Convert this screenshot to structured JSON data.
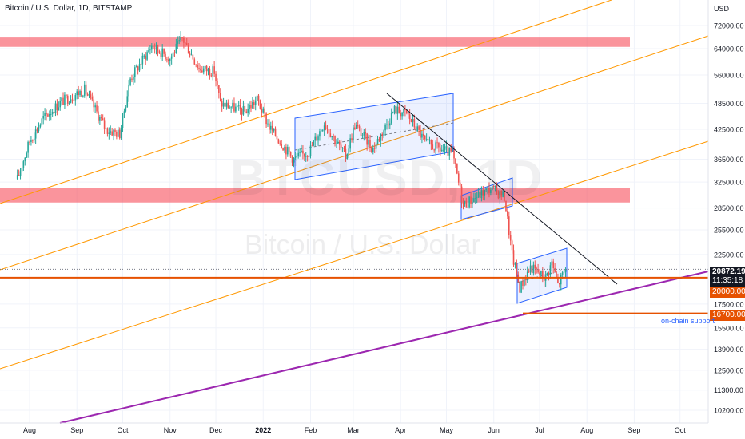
{
  "header": {
    "title": "Bitcoin / U.S. Dollar, 1D, BITSTAMP"
  },
  "watermark": {
    "ticker": "BTCUSD, 1D",
    "name": "Bitcoin / U.S. Dollar"
  },
  "colors": {
    "up_candle": "#26a69a",
    "down_candle": "#ef5350",
    "resistance_zone": "#f7525f",
    "channel": "#2962ff",
    "fib_lines": "#ff9800",
    "support_line": "#9c27b0",
    "key_level": "#e65100",
    "trendline": "#131722"
  },
  "chart_data": {
    "type": "candlestick",
    "title": "Bitcoin / U.S. Dollar, 1D, BITSTAMP",
    "y_axis": {
      "unit": "USD",
      "scale": "log",
      "ticks": [
        "72000.00",
        "64000.00",
        "56000.00",
        "48500.00",
        "42500.00",
        "36500.00",
        "32500.00",
        "28500.00",
        "25500.00",
        "22500.00",
        "20000.00",
        "17500.00",
        "15500.00",
        "13900.00",
        "12500.00",
        "11300.00",
        "10200.00"
      ]
    },
    "x_axis": {
      "ticks": [
        "Aug",
        "Sep",
        "Oct",
        "Nov",
        "Dec",
        "2022",
        "Feb",
        "Mar",
        "Apr",
        "May",
        "Jun",
        "Jul",
        "Aug",
        "Sep",
        "Oct"
      ]
    },
    "series": [
      {
        "name": "BTCUSD",
        "close_path": [
          [
            "Jul 24",
            33000
          ],
          [
            "Aug 1",
            40000
          ],
          [
            "Aug 10",
            45000
          ],
          [
            "Aug 22",
            49000
          ],
          [
            "Sep 6",
            52000
          ],
          [
            "Sep 20",
            42500
          ],
          [
            "Sep 29",
            41500
          ],
          [
            "Oct 6",
            55000
          ],
          [
            "Oct 20",
            65000
          ],
          [
            "Nov 1",
            61000
          ],
          [
            "Nov 9",
            67500
          ],
          [
            "Nov 20",
            58000
          ],
          [
            "Nov 30",
            57000
          ],
          [
            "Dec 4",
            48500
          ],
          [
            "Dec 20",
            46500
          ],
          [
            "Dec 28",
            49500
          ],
          [
            "Jan 5",
            43000
          ],
          [
            "Jan 21",
            36500
          ],
          [
            "Jan 31",
            38000
          ],
          [
            "Feb 10",
            44000
          ],
          [
            "Feb 24",
            37000
          ],
          [
            "Mar 2",
            43500
          ],
          [
            "Mar 14",
            38500
          ],
          [
            "Mar 28",
            47000
          ],
          [
            "Apr 5",
            46000
          ],
          [
            "Apr 18",
            39500
          ],
          [
            "May 5",
            37500
          ],
          [
            "May 12",
            29000
          ],
          [
            "May 30",
            31500
          ],
          [
            "Jun 8",
            30200
          ],
          [
            "Jun 13",
            22500
          ],
          [
            "Jun 18",
            19000
          ],
          [
            "Jun 25",
            21100
          ],
          [
            "Jul 5",
            20000
          ],
          [
            "Jul 9",
            21600
          ],
          [
            "Jul 13",
            19300
          ],
          [
            "Jul 18",
            20872
          ]
        ]
      }
    ],
    "last_price": "20872.19",
    "countdown": "11:35:18",
    "levels": [
      {
        "label": "20000.00",
        "price": 20000
      },
      {
        "label": "16700.00",
        "price": 16700
      }
    ],
    "zones": [
      {
        "from": 64600,
        "to": 68000
      },
      {
        "from": 29300,
        "to": 31500
      }
    ],
    "annotations": [
      "on-chain support"
    ]
  }
}
